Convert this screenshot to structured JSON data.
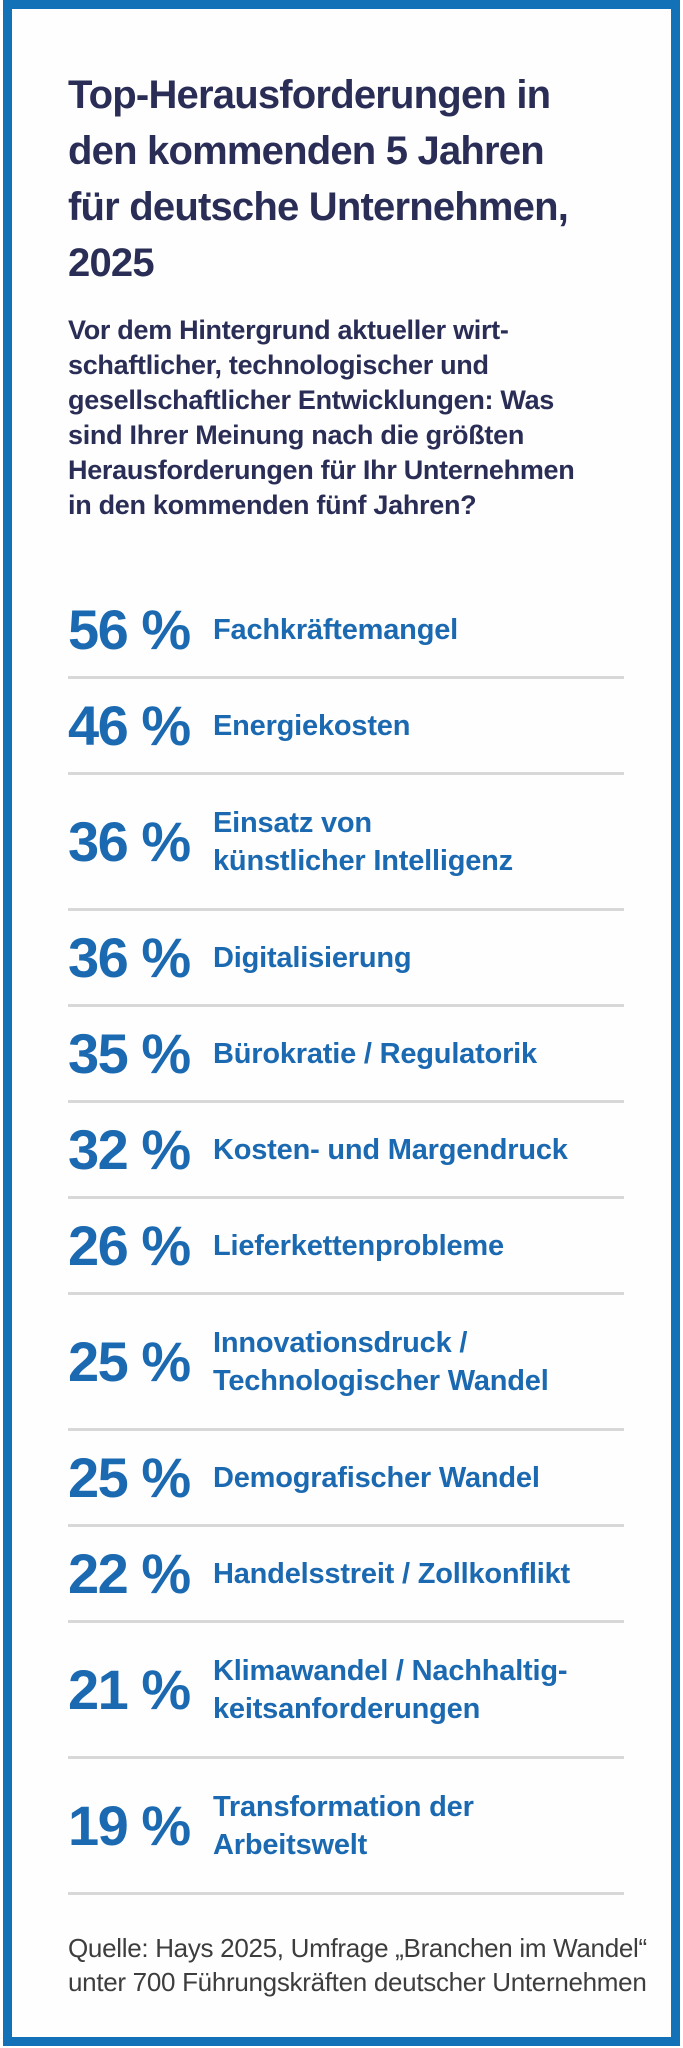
{
  "frame": {
    "border_color": "#1371b8",
    "accent_text_color": "#1b69b1",
    "title_color": "#2a2d55"
  },
  "header": {
    "title_lines": [
      "Top-Herausforderungen in",
      "den kommenden 5 Jahren",
      "für deutsche Unternehmen,",
      "2025"
    ],
    "subtitle_lines": [
      "Vor dem Hintergrund aktueller wirt-",
      "schaftlicher, technologischer und",
      "gesellschaftlicher Entwicklungen: Was",
      "sind Ihrer Meinung nach die größten",
      "Herausforderungen für Ihr Unternehmen",
      "in den kommenden fünf Jahren?"
    ]
  },
  "rows": [
    {
      "value": "56 %",
      "lines": [
        "Fachkräftemangel"
      ]
    },
    {
      "value": "46 %",
      "lines": [
        "Energiekosten"
      ]
    },
    {
      "value": "36 %",
      "lines": [
        "Einsatz von",
        "künstlicher Intelligenz"
      ]
    },
    {
      "value": "36 %",
      "lines": [
        "Digitalisierung"
      ]
    },
    {
      "value": "35 %",
      "lines": [
        "Bürokratie / Regulatorik"
      ]
    },
    {
      "value": "32 %",
      "lines": [
        "Kosten- und Margendruck"
      ]
    },
    {
      "value": "26 %",
      "lines": [
        "Lieferkettenprobleme"
      ]
    },
    {
      "value": "25 %",
      "lines": [
        "Innovationsdruck /",
        "Technologischer Wandel"
      ]
    },
    {
      "value": "25 %",
      "lines": [
        "Demografischer Wandel"
      ]
    },
    {
      "value": "22 %",
      "lines": [
        "Handelsstreit / Zollkonflikt"
      ]
    },
    {
      "value": "21 %",
      "lines": [
        "Klimawandel / Nachhaltig-",
        "keitsanforderungen"
      ]
    },
    {
      "value": "19 %",
      "lines": [
        "Transformation der",
        "Arbeitswelt"
      ]
    }
  ],
  "source": {
    "lines": [
      "Quelle: Hays 2025, Umfrage „Branchen im Wandel“",
      "unter 700 Führungskräften deutscher Unternehmen"
    ]
  },
  "chart_data": {
    "type": "table",
    "title": "Top-Herausforderungen in den kommenden 5 Jahren für deutsche Unternehmen, 2025",
    "subtitle": "Vor dem Hintergrund aktueller wirtschaftlicher, technologischer und gesellschaftlicher Entwicklungen: Was sind Ihrer Meinung nach die größten Herausforderungen für Ihr Unternehmen in den kommenden fünf Jahren?",
    "unit": "%",
    "categories": [
      "Fachkräftemangel",
      "Energiekosten",
      "Einsatz von künstlicher Intelligenz",
      "Digitalisierung",
      "Bürokratie / Regulatorik",
      "Kosten- und Margendruck",
      "Lieferkettenprobleme",
      "Innovationsdruck / Technologischer Wandel",
      "Demografischer Wandel",
      "Handelsstreit / Zollkonflikt",
      "Klimawandel / Nachhaltigkeitsanforderungen",
      "Transformation der Arbeitswelt"
    ],
    "values": [
      56,
      46,
      36,
      36,
      35,
      32,
      26,
      25,
      25,
      22,
      21,
      19
    ],
    "source": "Quelle: Hays 2025, Umfrage „Branchen im Wandel“ unter 700 Führungskräften deutscher Unternehmen"
  }
}
